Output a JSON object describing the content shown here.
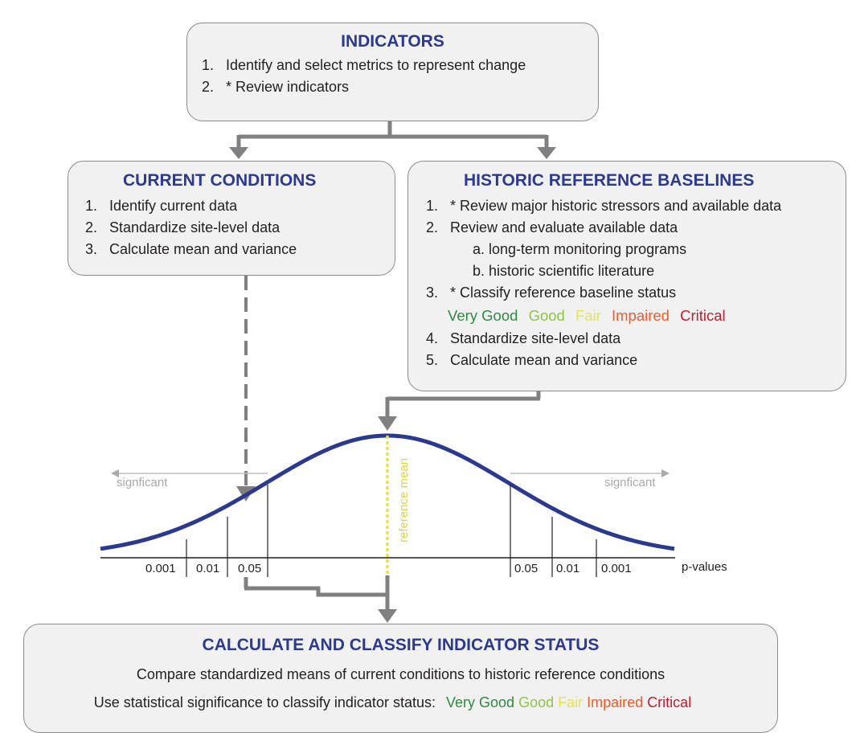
{
  "indicators": {
    "title": "INDICATORS",
    "items": [
      {
        "num": "1.",
        "text": "Identify and select metrics to represent change"
      },
      {
        "num": "2.",
        "text": "* Review indicators"
      }
    ]
  },
  "current_conditions": {
    "title": "CURRENT CONDITIONS",
    "items": [
      {
        "num": "1.",
        "text": "Identify current data"
      },
      {
        "num": "2.",
        "text": "Standardize site-level data"
      },
      {
        "num": "3.",
        "text": "Calculate mean and variance"
      }
    ]
  },
  "historic_baselines": {
    "title": "HISTORIC REFERENCE BASELINES",
    "item1": {
      "num": "1.",
      "text": "* Review major historic stressors and available data"
    },
    "item2": {
      "num": "2.",
      "text": "Review and evaluate available data"
    },
    "sub_a": "a. long-term monitoring programs",
    "sub_b": "b. historic scientific literature",
    "item3": {
      "num": "3.",
      "text": "* Classify reference baseline status"
    },
    "item4": {
      "num": "4.",
      "text": "Standardize site-level data"
    },
    "item5": {
      "num": "5.",
      "text": "Calculate mean and variance"
    }
  },
  "status_labels": {
    "very_good": "Very Good",
    "good": "Good",
    "fair": "Fair",
    "impaired": "Impaired",
    "critical": "Critical"
  },
  "status_colors": {
    "very_good": "#2e8b3e",
    "good": "#8dc63f",
    "fair": "#e5e352",
    "impaired": "#f15a29",
    "critical": "#be1e2d"
  },
  "curve": {
    "left_label": "signficant",
    "right_label": "signficant",
    "mean_label": "reference mean",
    "axis_label": "p-values",
    "left_ticks": [
      "0.001",
      "0.01",
      "0.05"
    ],
    "right_ticks": [
      "0.05",
      "0.01",
      "0.001"
    ]
  },
  "classify": {
    "title": "CALCULATE AND CLASSIFY INDICATOR STATUS",
    "line1": "Compare standardized means of current conditions to historic reference conditions",
    "line2_prefix": "Use statistical significance to classify indicator status:"
  }
}
